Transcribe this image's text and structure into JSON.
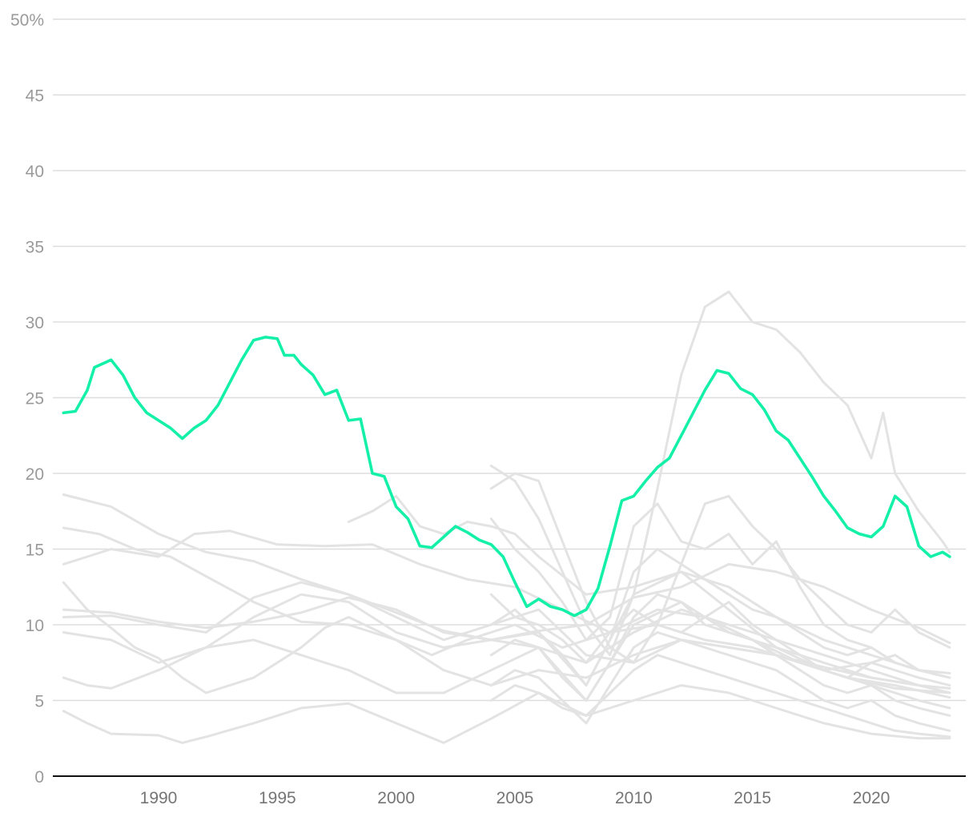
{
  "chart_data": {
    "type": "line",
    "title": "",
    "xlabel": "",
    "ylabel": "",
    "x_range": [
      1986.0,
      2023.3
    ],
    "ylim": [
      0,
      50
    ],
    "y_ticks": [
      0,
      5,
      10,
      15,
      20,
      25,
      30,
      35,
      40,
      45,
      50
    ],
    "y_tick_labels": [
      "0",
      "5",
      "10",
      "15",
      "20",
      "25",
      "30",
      "35",
      "40",
      "45",
      "50%"
    ],
    "x_ticks": [
      1990,
      1995,
      2000,
      2005,
      2010,
      2015,
      2020
    ],
    "x_tick_labels": [
      "1990",
      "1995",
      "2000",
      "2005",
      "2010",
      "2015",
      "2020"
    ],
    "grid": true,
    "legend": "none",
    "colors": {
      "highlight": "#14f0a8",
      "background_series": "#e3e3e3",
      "grid": "#dddddd",
      "baseline": "#111111"
    },
    "highlight_series": {
      "x": [
        1986.0,
        1986.5,
        1987.0,
        1987.3,
        1988.0,
        1988.5,
        1989.0,
        1989.5,
        1990.0,
        1990.5,
        1991.0,
        1991.5,
        1992.0,
        1992.5,
        1993.0,
        1993.5,
        1994.0,
        1994.5,
        1995.0,
        1995.3,
        1995.7,
        1996.0,
        1996.5,
        1997.0,
        1997.5,
        1998.0,
        1998.5,
        1999.0,
        1999.5,
        2000.0,
        2000.5,
        2001.0,
        2001.5,
        2002.0,
        2002.5,
        2003.0,
        2003.5,
        2004.0,
        2004.5,
        2005.0,
        2005.5,
        2006.0,
        2006.5,
        2007.0,
        2007.5,
        2008.0,
        2008.5,
        2009.0,
        2009.5,
        2010.0,
        2010.5,
        2011.0,
        2011.5,
        2012.0,
        2012.5,
        2013.0,
        2013.5,
        2014.0,
        2014.5,
        2015.0,
        2015.5,
        2016.0,
        2016.5,
        2017.0,
        2017.5,
        2018.0,
        2018.5,
        2019.0,
        2019.5,
        2020.0,
        2020.5,
        2021.0,
        2021.5,
        2022.0,
        2022.5,
        2023.0,
        2023.3
      ],
      "y": [
        24.0,
        24.1,
        25.5,
        27.0,
        27.5,
        26.5,
        25.0,
        24.0,
        23.5,
        23.0,
        22.3,
        23.0,
        23.5,
        24.5,
        26.0,
        27.5,
        28.8,
        29.0,
        28.9,
        27.8,
        27.8,
        27.2,
        26.5,
        25.2,
        25.5,
        23.5,
        23.6,
        20.0,
        19.8,
        17.8,
        17.0,
        15.2,
        15.1,
        15.8,
        16.5,
        16.1,
        15.6,
        15.3,
        14.5,
        12.8,
        11.2,
        11.7,
        11.2,
        11.0,
        10.6,
        11.0,
        12.4,
        15.2,
        18.2,
        18.5,
        19.5,
        20.4,
        21.0,
        22.5,
        24.0,
        25.5,
        26.8,
        26.6,
        25.6,
        25.2,
        24.2,
        22.8,
        22.2,
        21.0,
        19.8,
        18.5,
        17.5,
        16.4,
        16.0,
        15.8,
        16.5,
        18.5,
        17.8,
        15.2,
        14.5,
        14.8,
        14.5
      ]
    },
    "series": [
      {
        "x": [
          1986.0,
          1987.0,
          1988.0,
          1990.0,
          1992.0,
          1994.0,
          1996.0,
          1998.0,
          2000.0,
          2002.0,
          2004.0,
          2006.0,
          2008.0,
          2010.0,
          2012.0,
          2014.0,
          2016.0,
          2018.0,
          2020.0,
          2022.0,
          2023.3
        ],
        "y": [
          18.6,
          18.2,
          17.8,
          16.0,
          14.8,
          14.2,
          13.0,
          12.0,
          10.8,
          9.6,
          9.0,
          9.6,
          10.0,
          11.8,
          12.5,
          14.0,
          13.5,
          12.5,
          11.0,
          9.8,
          8.8
        ]
      },
      {
        "x": [
          1986.0,
          1987.5,
          1989.0,
          1990.5,
          1992.0,
          1994.0,
          1996.0,
          1998.0,
          2000.0,
          2001.5,
          2003.0,
          2005.0,
          2007.0,
          2009.0,
          2011.0,
          2013.0,
          2015.0,
          2017.0,
          2019.0,
          2021.0,
          2023.3
        ],
        "y": [
          16.4,
          16.0,
          15.0,
          14.5,
          13.2,
          11.5,
          10.2,
          10.0,
          9.0,
          8.0,
          9.0,
          10.0,
          8.5,
          9.5,
          11.0,
          10.5,
          9.0,
          7.5,
          6.5,
          5.8,
          5.5
        ]
      },
      {
        "x": [
          1986.0,
          1987.0,
          1988.0,
          1990.0,
          1991.5,
          1993.0,
          1995.0,
          1997.0,
          1999.0,
          2001.0,
          2003.0,
          2005.0,
          2007.0,
          2009.0,
          2011.0,
          2013.0,
          2015.0,
          2017.0,
          2019.0,
          2021.0,
          2023.3
        ],
        "y": [
          14.0,
          14.5,
          15.0,
          14.5,
          16.0,
          16.2,
          15.3,
          15.2,
          15.3,
          14.0,
          13.0,
          12.5,
          11.0,
          9.5,
          10.0,
          9.0,
          8.5,
          7.5,
          6.5,
          6.0,
          5.2
        ]
      },
      {
        "x": [
          1986.0,
          1987.0,
          1988.0,
          1989.0,
          1990.0,
          1991.0,
          1992.0,
          1993.0,
          1994.0,
          1995.0,
          1996.0,
          1997.0,
          1998.0,
          2000.0,
          2002.0,
          2004.0,
          2006.0,
          2008.0,
          2010.0,
          2012.0,
          2014.0,
          2016.0,
          2018.0,
          2020.0,
          2022.0,
          2023.3
        ],
        "y": [
          12.8,
          11.0,
          9.8,
          8.5,
          7.8,
          6.5,
          5.5,
          6.0,
          6.5,
          7.5,
          8.5,
          9.8,
          10.5,
          9.0,
          7.0,
          6.0,
          7.0,
          6.5,
          8.0,
          9.0,
          8.5,
          8.0,
          7.0,
          6.0,
          5.0,
          4.5
        ]
      },
      {
        "x": [
          1986.0,
          1988.0,
          1990.0,
          1992.0,
          1994.0,
          1996.0,
          1998.0,
          2000.0,
          2002.0,
          2004.0,
          2006.0,
          2008.0,
          2010.0,
          2012.0,
          2014.0,
          2016.0,
          2018.0,
          2020.0,
          2022.0,
          2023.3
        ],
        "y": [
          11.0,
          10.8,
          10.2,
          9.8,
          10.2,
          10.8,
          11.8,
          11.0,
          9.5,
          9.0,
          8.5,
          7.5,
          9.5,
          11.0,
          10.0,
          9.0,
          8.0,
          7.0,
          6.0,
          5.5
        ]
      },
      {
        "x": [
          1986.0,
          1988.0,
          1990.0,
          1992.0,
          1994.0,
          1996.0,
          1998.0,
          2000.0,
          2002.0,
          2004.0,
          2006.0,
          2008.0,
          2010.0,
          2012.0,
          2014.0,
          2016.0,
          2018.0,
          2020.0,
          2022.0,
          2023.3
        ],
        "y": [
          10.5,
          10.6,
          10.0,
          9.5,
          11.8,
          12.8,
          12.0,
          10.5,
          9.0,
          10.0,
          11.0,
          8.0,
          7.5,
          9.0,
          8.5,
          8.0,
          7.2,
          6.5,
          6.0,
          5.8
        ]
      },
      {
        "x": [
          1986.0,
          1988.0,
          1990.0,
          1992.0,
          1994.0,
          1996.0,
          1998.0,
          2000.0,
          2002.0,
          2004.0,
          2006.0,
          2008.0,
          2010.0,
          2012.0,
          2014.0,
          2016.0,
          2018.0,
          2020.0,
          2022.0,
          2023.3
        ],
        "y": [
          9.5,
          9.0,
          7.5,
          8.5,
          10.5,
          12.0,
          11.5,
          9.5,
          8.5,
          9.0,
          9.5,
          6.0,
          12.0,
          13.5,
          11.0,
          8.5,
          7.0,
          7.5,
          6.5,
          6.0
        ]
      },
      {
        "x": [
          1986.0,
          1987.0,
          1988.0,
          1990.0,
          1992.0,
          1994.0,
          1996.0,
          1998.0,
          2000.0,
          2002.0,
          2004.0,
          2006.0,
          2008.0,
          2010.0,
          2012.0,
          2014.0,
          2016.0,
          2018.0,
          2020.0,
          2022.0,
          2023.3
        ],
        "y": [
          6.5,
          6.0,
          5.8,
          7.0,
          8.5,
          9.0,
          8.0,
          7.0,
          5.5,
          5.5,
          7.0,
          8.5,
          5.0,
          10.0,
          11.5,
          9.5,
          8.5,
          7.5,
          6.5,
          6.0,
          5.5
        ]
      },
      {
        "x": [
          1986.0,
          1987.0,
          1988.0,
          1990.0,
          1991.0,
          1992.0,
          1994.0,
          1996.0,
          1998.0,
          2000.0,
          2002.0,
          2004.0,
          2006.0,
          2008.0,
          2010.0,
          2012.0,
          2014.0,
          2016.0,
          2018.0,
          2020.0,
          2022.0,
          2023.3
        ],
        "y": [
          4.3,
          3.5,
          2.8,
          2.7,
          2.2,
          2.6,
          3.5,
          4.5,
          4.8,
          3.5,
          2.2,
          3.8,
          5.5,
          4.0,
          5.0,
          6.0,
          5.5,
          4.5,
          3.5,
          2.8,
          2.5,
          2.5
        ]
      },
      {
        "x": [
          1998.0,
          1999.0,
          2000.0,
          2001.0,
          2002.0,
          2003.0,
          2004.0,
          2005.0,
          2006.0,
          2008.0,
          2010.0,
          2012.0,
          2014.0,
          2016.0,
          2018.0,
          2020.0,
          2022.0,
          2023.3
        ],
        "y": [
          16.8,
          17.5,
          18.5,
          16.5,
          16.0,
          16.8,
          16.5,
          16.0,
          14.5,
          12.0,
          12.5,
          13.5,
          12.5,
          10.5,
          9.0,
          8.0,
          7.0,
          6.5
        ]
      },
      {
        "x": [
          2004.0,
          2005.0,
          2006.0,
          2007.0,
          2008.0,
          2009.0,
          2010.0,
          2011.0,
          2012.0,
          2013.0,
          2014.0,
          2015.0,
          2016.0,
          2017.0,
          2018.0,
          2019.0,
          2020.0,
          2020.5,
          2021.0,
          2022.0,
          2023.0,
          2023.3
        ],
        "y": [
          20.5,
          19.5,
          17.0,
          13.5,
          10.0,
          8.0,
          12.0,
          19.0,
          26.5,
          31.0,
          32.0,
          30.0,
          29.5,
          28.0,
          26.0,
          24.5,
          21.0,
          24.0,
          20.0,
          17.5,
          15.5,
          14.8
        ]
      },
      {
        "x": [
          2004.0,
          2005.0,
          2006.0,
          2007.0,
          2008.0,
          2009.0,
          2010.0,
          2011.0,
          2012.0,
          2013.0,
          2014.0,
          2015.0,
          2016.0,
          2017.0,
          2018.0,
          2019.0,
          2020.0,
          2021.0,
          2022.0,
          2023.3
        ],
        "y": [
          19.0,
          20.0,
          19.5,
          15.5,
          11.5,
          8.5,
          7.5,
          10.0,
          14.0,
          18.0,
          18.5,
          16.5,
          15.0,
          13.0,
          11.5,
          10.0,
          9.5,
          11.0,
          9.5,
          8.5
        ]
      },
      {
        "x": [
          2004.0,
          2005.0,
          2006.0,
          2007.0,
          2008.0,
          2009.0,
          2010.0,
          2011.0,
          2012.0,
          2013.0,
          2014.0,
          2015.0,
          2016.0,
          2017.0,
          2018.0,
          2019.0,
          2020.0,
          2021.0,
          2022.0,
          2023.3
        ],
        "y": [
          17.0,
          15.0,
          13.5,
          11.5,
          9.0,
          10.5,
          16.5,
          18.0,
          15.5,
          15.0,
          16.0,
          14.0,
          15.5,
          12.5,
          10.0,
          9.0,
          8.5,
          7.5,
          7.0,
          6.5
        ]
      },
      {
        "x": [
          2004.0,
          2005.0,
          2006.0,
          2007.0,
          2008.0,
          2009.0,
          2010.0,
          2011.0,
          2012.0,
          2013.0,
          2014.0,
          2015.0,
          2016.0,
          2017.0,
          2018.0,
          2019.0,
          2020.0,
          2021.0,
          2022.0,
          2023.3
        ],
        "y": [
          10.0,
          11.0,
          9.5,
          8.0,
          6.0,
          9.0,
          13.5,
          15.0,
          14.0,
          13.0,
          12.0,
          11.0,
          10.5,
          9.5,
          8.5,
          8.0,
          8.5,
          7.5,
          7.0,
          6.8
        ]
      },
      {
        "x": [
          2004.0,
          2005.0,
          2006.0,
          2007.0,
          2008.0,
          2009.0,
          2010.0,
          2011.0,
          2012.0,
          2013.0,
          2014.0,
          2015.0,
          2016.0,
          2017.0,
          2018.0,
          2019.0,
          2020.0,
          2021.0,
          2022.0,
          2023.3
        ],
        "y": [
          8.0,
          9.0,
          8.5,
          6.5,
          5.0,
          7.5,
          10.5,
          12.0,
          11.5,
          10.0,
          9.5,
          9.0,
          8.0,
          7.0,
          6.0,
          5.5,
          6.0,
          5.0,
          4.5,
          4.0
        ]
      },
      {
        "x": [
          2004.0,
          2005.0,
          2006.0,
          2007.0,
          2008.0,
          2009.0,
          2010.0,
          2011.0,
          2012.0,
          2013.0,
          2014.0,
          2015.0,
          2016.0,
          2017.0,
          2018.0,
          2019.0,
          2020.0,
          2021.0,
          2022.0,
          2023.3
        ],
        "y": [
          6.0,
          7.0,
          6.5,
          5.0,
          3.5,
          6.0,
          8.5,
          9.5,
          9.0,
          8.5,
          8.0,
          7.5,
          7.0,
          6.0,
          5.0,
          4.5,
          5.0,
          4.0,
          3.5,
          3.0
        ]
      },
      {
        "x": [
          2004.0,
          2005.0,
          2006.0,
          2007.0,
          2008.0,
          2009.0,
          2010.0,
          2011.0,
          2012.0,
          2013.0,
          2014.0,
          2015.0,
          2016.0,
          2017.0,
          2018.0,
          2019.0,
          2020.0,
          2021.0,
          2022.0,
          2023.3
        ],
        "y": [
          12.0,
          10.5,
          10.0,
          9.0,
          7.5,
          9.5,
          11.0,
          10.0,
          9.5,
          10.5,
          11.5,
          10.0,
          9.0,
          8.0,
          7.0,
          6.5,
          7.5,
          8.0,
          7.0,
          6.5
        ]
      },
      {
        "x": [
          2004.0,
          2005.0,
          2006.0,
          2007.0,
          2008.0,
          2009.0,
          2010.0,
          2011.0,
          2012.0,
          2013.0,
          2014.0,
          2015.0,
          2016.0,
          2017.0,
          2018.0,
          2019.0,
          2020.0,
          2021.0,
          2022.0,
          2023.3
        ],
        "y": [
          5.0,
          6.0,
          5.5,
          4.5,
          4.0,
          5.5,
          7.0,
          8.0,
          7.5,
          7.0,
          6.5,
          6.0,
          5.5,
          5.0,
          4.5,
          4.0,
          3.5,
          3.0,
          2.8,
          2.6
        ]
      }
    ]
  }
}
